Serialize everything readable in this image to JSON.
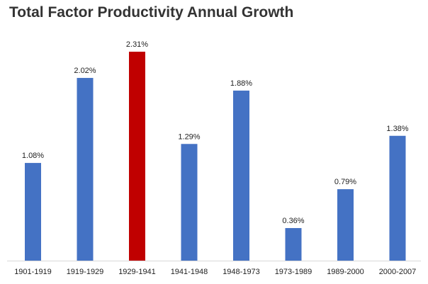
{
  "chart_data": {
    "type": "bar",
    "title": "Total Factor Productivity Annual Growth",
    "xlabel": "",
    "ylabel": "",
    "categories": [
      "1901-1919",
      "1919-1929",
      "1929-1941",
      "1941-1948",
      "1948-1973",
      "1973-1989",
      "1989-2000",
      "2000-2007"
    ],
    "values": [
      1.08,
      2.02,
      2.31,
      1.29,
      1.88,
      0.36,
      0.79,
      1.38
    ],
    "data_labels": [
      "1.08%",
      "2.02%",
      "2.31%",
      "1.29%",
      "1.88%",
      "0.36%",
      "0.79%",
      "1.38%"
    ],
    "ylim": [
      0,
      2.31
    ],
    "grid": false,
    "legend": "none",
    "colors": {
      "default_bar": "#4472C4",
      "highlight_bar": "#C00000",
      "highlight_index": 2
    }
  }
}
